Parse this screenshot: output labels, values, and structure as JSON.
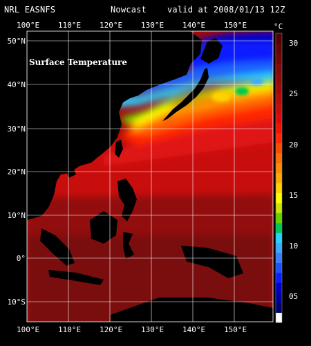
{
  "header": {
    "source": "NRL EASNFS",
    "product": "Nowcast",
    "valid": "valid at 2008/01/13 12Z"
  },
  "map": {
    "label": "Surface Temperature",
    "lon_ticks": [
      "100°E",
      "110°E",
      "120°E",
      "130°E",
      "140°E",
      "150°E"
    ],
    "lat_ticks": [
      "50°N",
      "40°N",
      "30°N",
      "20°N",
      "10°N",
      "0°",
      "10°S"
    ],
    "lon_range": [
      100,
      159
    ],
    "lat_range": [
      -17,
      52
    ]
  },
  "colorbar": {
    "unit": "°C",
    "labels": [
      "30",
      "25",
      "20",
      "15",
      "10",
      "05"
    ],
    "colors": [
      "#ffffff",
      "#00006e",
      "#0000a0",
      "#0000cc",
      "#0a1eff",
      "#1e50ff",
      "#3c7dff",
      "#3caaff",
      "#28d2ff",
      "#00c850",
      "#64d200",
      "#c8e600",
      "#ffff00",
      "#ffd200",
      "#ffaa00",
      "#ff8c00",
      "#ff6e00",
      "#ff4b00",
      "#ff2800",
      "#f01400",
      "#dc0a0a",
      "#c80a0a",
      "#b40a0a",
      "#a00a0a",
      "#910a0a",
      "#820a0a",
      "#730505",
      "#640505",
      "#550000"
    ]
  }
}
